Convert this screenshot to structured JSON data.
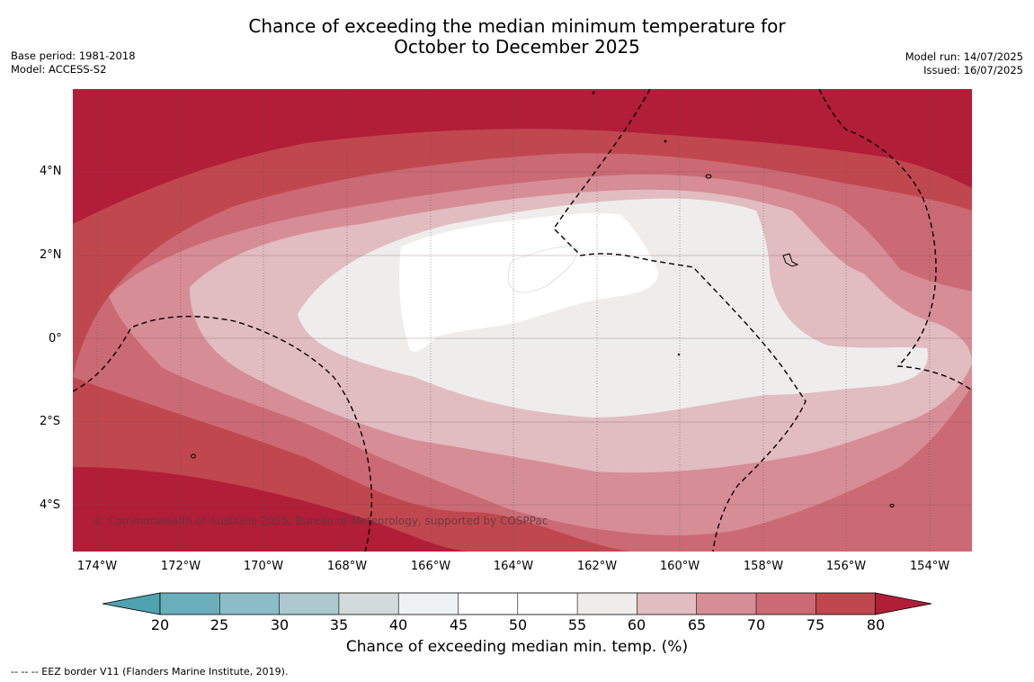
{
  "header": {
    "title_line1": "Chance of exceeding the median minimum temperature for",
    "title_line2": "October to December 2025",
    "base_period": "Base period: 1981-2018",
    "model": "Model: ACCESS-S2",
    "model_run": "Model run: 14/07/2025",
    "issued": "Issued: 16/07/2025"
  },
  "map": {
    "lat_labels": [
      "4°N",
      "2°N",
      "0°",
      "2°S",
      "4°S"
    ],
    "lon_labels": [
      "174°W",
      "172°W",
      "170°W",
      "168°W",
      "166°W",
      "164°W",
      "162°W",
      "160°W",
      "158°W",
      "156°W",
      "154°W"
    ],
    "copyright": "© Commonwealth of Australia 2025, Bureau of Meteorology, supported by COSPPac",
    "footnote": "--  --  -- EEZ border V11 (Flanders Marine Institute, 2019)."
  },
  "colorbar": {
    "title": "Chance of exceeding median min. temp. (%)",
    "ticks": [
      "20",
      "25",
      "30",
      "35",
      "40",
      "45",
      "50",
      "55",
      "60",
      "65",
      "70",
      "75",
      "80"
    ],
    "colors": {
      "below20": "#4fa2b0",
      "b20_25": "#6aaebc",
      "b25_30": "#8abdc7",
      "b30_35": "#adc9cd",
      "b35_40": "#d3dadb",
      "b40_45": "#eef2f2",
      "b45_50": "#ffffff",
      "b50_55": "#ffffff",
      "b55_60": "#eeedec",
      "b60_65": "#e1bcc0",
      "b65_70": "#d68d96",
      "b70_75": "#cb6a74",
      "b75_80": "#c1474f",
      "above80": "#b21d38"
    }
  }
}
